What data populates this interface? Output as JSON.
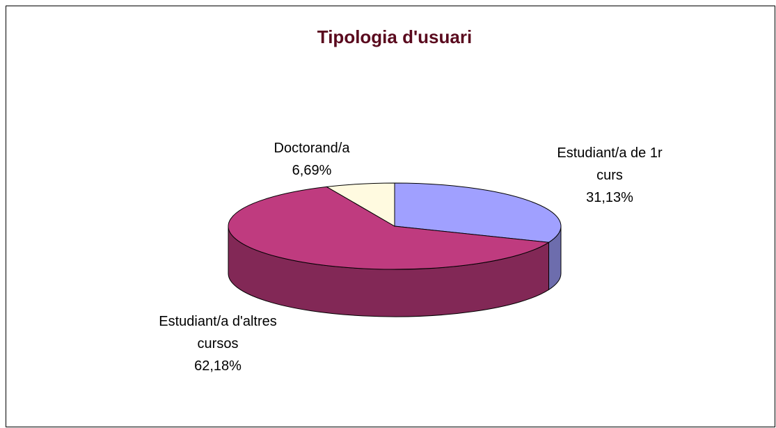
{
  "chart_data": {
    "type": "pie3d",
    "title": "Tipologia d'usuari",
    "categories": [
      "Estudiant/a de 1r curs",
      "Estudiant/a d'altres cursos",
      "Doctorand/a"
    ],
    "values": [
      31.13,
      62.18,
      6.69
    ],
    "value_labels": [
      "31,13%",
      "62,18%",
      "6,69%"
    ],
    "colors": [
      "#a0a0ff",
      "#bf3b7f",
      "#fffae0"
    ]
  }
}
